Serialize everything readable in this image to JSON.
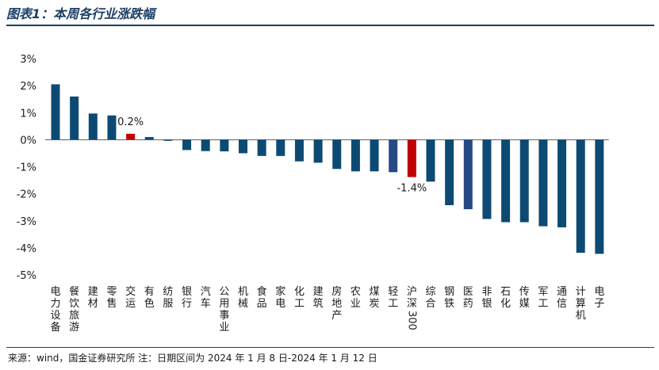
{
  "header": {
    "title": "图表1：本周各行业涨跌幅"
  },
  "footer": {
    "source": "来源：wind，国金证券研究所   注：日期区间为 2024 年 1 月 8 日-2024 年 1 月 12 日"
  },
  "colors": {
    "bar": "#0d4a73",
    "highlight": "#c00000",
    "title": "#1c3f66",
    "alt_bar": "#274a85"
  },
  "chart_data": {
    "type": "bar",
    "title": "",
    "xlabel": "",
    "ylabel": "",
    "ylim": [
      -5,
      3
    ],
    "yticks": [
      "3%",
      "2%",
      "1%",
      "0%",
      "-1%",
      "-2%",
      "-3%",
      "-4%",
      "-5%"
    ],
    "unit": "%",
    "grid": false,
    "legend": "none",
    "categories": [
      "电力设备",
      "餐饮旅游",
      "建材",
      "零售",
      "交运",
      "有色",
      "纺服",
      "银行",
      "汽车",
      "公用事业",
      "机械",
      "食品",
      "家电",
      "化工",
      "建筑",
      "房地产",
      "农业",
      "煤炭",
      "轻工",
      "沪深300",
      "综合",
      "钢铁",
      "医药",
      "非银",
      "石化",
      "传媒",
      "军工",
      "通信",
      "计算机",
      "电子"
    ],
    "values": [
      2.05,
      1.6,
      0.97,
      0.9,
      0.22,
      0.1,
      -0.04,
      -0.38,
      -0.42,
      -0.43,
      -0.5,
      -0.6,
      -0.6,
      -0.8,
      -0.85,
      -1.08,
      -1.17,
      -1.17,
      -1.2,
      -1.38,
      -1.55,
      -2.42,
      -2.57,
      -2.93,
      -3.05,
      -3.05,
      -3.2,
      -3.24,
      -4.18,
      -4.22
    ],
    "highlighted": [
      "交运",
      "沪深300"
    ],
    "alt_colored": [
      "轻工",
      "医药"
    ],
    "data_labels": [
      {
        "category": "交运",
        "text": "0.2%"
      },
      {
        "category": "沪深300",
        "text": "-1.4%"
      }
    ]
  }
}
